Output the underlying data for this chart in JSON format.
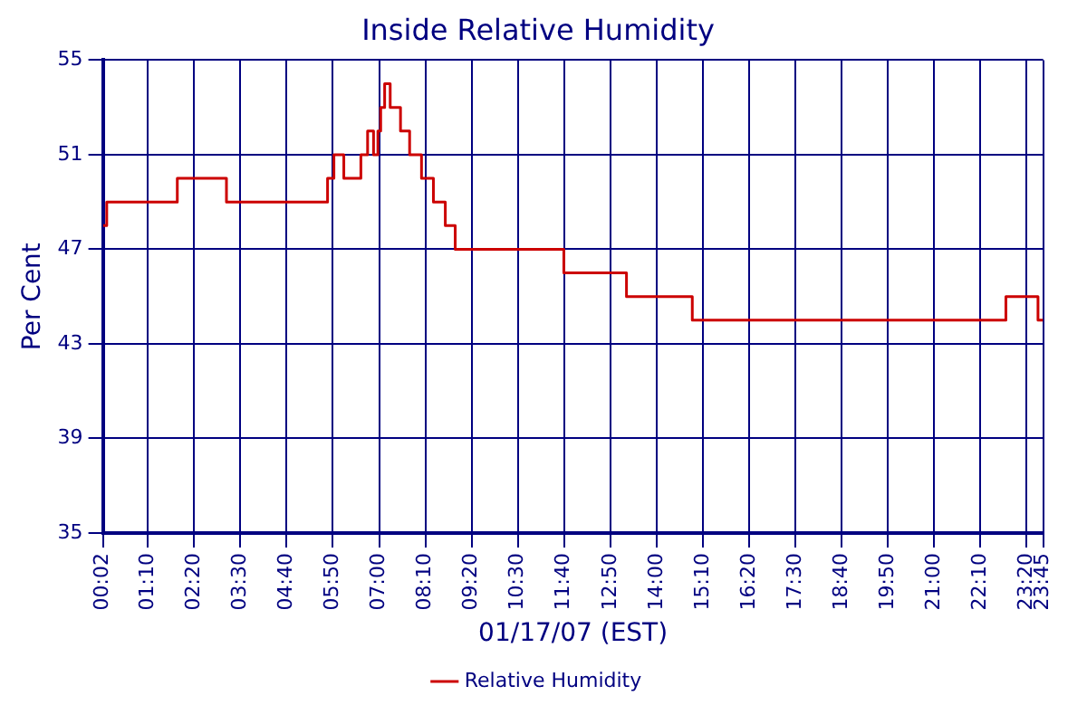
{
  "chart_data": {
    "type": "step",
    "title": "Inside Relative Humidity",
    "xlabel": "01/17/07 (EST)",
    "ylabel": "Per Cent",
    "series": [
      {
        "name": "Relative Humidity",
        "color": "#cc0000",
        "x": [
          0.0333,
          0.08,
          0.13,
          1.91,
          3.15,
          5.7,
          5.86,
          6.11,
          6.54,
          6.71,
          6.86,
          6.97,
          7.04,
          7.14,
          7.28,
          7.54,
          7.77,
          8.07,
          8.37,
          8.67,
          8.92,
          11.66,
          13.24,
          14.9,
          22.81,
          23.62,
          23.75
        ],
        "values": [
          48,
          48,
          49,
          50,
          49,
          50,
          51,
          50,
          51,
          52,
          51,
          52,
          53,
          54,
          53,
          52,
          51,
          50,
          49,
          48,
          47,
          46,
          45,
          44,
          45,
          44,
          44
        ]
      }
    ],
    "xlim": [
      0.0333,
      23.75
    ],
    "xticks": [
      {
        "value": 0.0333,
        "label": "00:02"
      },
      {
        "value": 1.1667,
        "label": "01:10"
      },
      {
        "value": 2.3333,
        "label": "02:20"
      },
      {
        "value": 3.5,
        "label": "03:30"
      },
      {
        "value": 4.6667,
        "label": "04:40"
      },
      {
        "value": 5.8333,
        "label": "05:50"
      },
      {
        "value": 7,
        "label": "07:00"
      },
      {
        "value": 8.1667,
        "label": "08:10"
      },
      {
        "value": 9.3333,
        "label": "09:20"
      },
      {
        "value": 10.5,
        "label": "10:30"
      },
      {
        "value": 11.6667,
        "label": "11:40"
      },
      {
        "value": 12.8333,
        "label": "12:50"
      },
      {
        "value": 14,
        "label": "14:00"
      },
      {
        "value": 15.1667,
        "label": "15:10"
      },
      {
        "value": 16.3333,
        "label": "16:20"
      },
      {
        "value": 17.5,
        "label": "17:30"
      },
      {
        "value": 18.6667,
        "label": "18:40"
      },
      {
        "value": 19.8333,
        "label": "19:50"
      },
      {
        "value": 21,
        "label": "21:00"
      },
      {
        "value": 22.1667,
        "label": "22:10"
      },
      {
        "value": 23.3333,
        "label": "23:20"
      },
      {
        "value": 23.75,
        "label": "23:45"
      }
    ],
    "ylim": [
      35,
      55
    ],
    "yticks": [
      35,
      39,
      43,
      47,
      51,
      55
    ],
    "grid": true,
    "legend": "bottom",
    "marker": "none",
    "line_style": "solid"
  }
}
